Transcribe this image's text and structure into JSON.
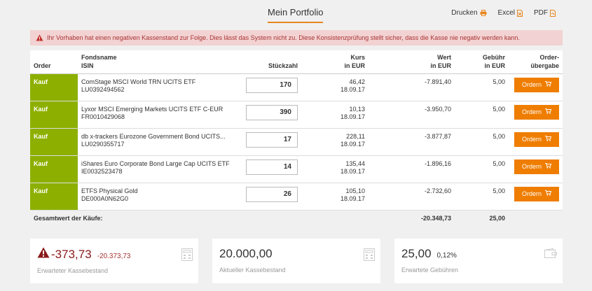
{
  "header": {
    "title": "Mein Portfolio",
    "print_label": "Drucken",
    "excel_label": "Excel",
    "pdf_label": "PDF"
  },
  "alert": {
    "text": "Ihr Vorhaben hat einen negativen Kassenstand zur Folge. Dies lässt das System nicht zu. Diese Konsistenzprüfung stellt sicher, dass die Kasse nie negativ werden kann."
  },
  "table": {
    "headers": {
      "order": "Order",
      "fund_name": "Fondsname",
      "isin": "ISIN",
      "qty": "Stückzahl",
      "price_1": "Kurs",
      "price_2": "in EUR",
      "value_1": "Wert",
      "value_2": "in EUR",
      "fee_1": "Gebühr",
      "fee_2": "in EUR",
      "submit_1": "Order-",
      "submit_2": "übergabe"
    },
    "rows": [
      {
        "order": "Kauf",
        "name": "ComStage MSCI World TRN UCITS ETF",
        "isin": "LU0392494562",
        "qty": "170",
        "price": "46,42",
        "date": "18.09.17",
        "value": "-7.891,40",
        "fee": "5,00",
        "button": "Ordern"
      },
      {
        "order": "Kauf",
        "name": "Lyxor MSCI Emerging Markets UCITS ETF C-EUR",
        "isin": "FR0010429068",
        "qty": "390",
        "price": "10,13",
        "date": "18.09.17",
        "value": "-3.950,70",
        "fee": "5,00",
        "button": "Ordern"
      },
      {
        "order": "Kauf",
        "name": "db x-trackers Eurozone Government Bond UCITS...",
        "isin": "LU0290355717",
        "qty": "17",
        "price": "228,11",
        "date": "18.09.17",
        "value": "-3.877,87",
        "fee": "5,00",
        "button": "Ordern"
      },
      {
        "order": "Kauf",
        "name": "iShares Euro Corporate Bond Large Cap UCITS ETF",
        "isin": "IE0032523478",
        "qty": "14",
        "price": "135,44",
        "date": "18.09.17",
        "value": "-1.896,16",
        "fee": "5,00",
        "button": "Ordern"
      },
      {
        "order": "Kauf",
        "name": "ETFS Physical Gold",
        "isin": "DE000A0N62G0",
        "qty": "26",
        "price": "105,10",
        "date": "18.09.17",
        "value": "-2.732,60",
        "fee": "5,00",
        "button": "Ordern"
      }
    ],
    "total": {
      "label": "Gesamtwert der Käufe:",
      "value": "-20.348,73",
      "fee": "25,00"
    }
  },
  "cards": {
    "cash": {
      "value": "-373,73",
      "delta": "-20.373,73",
      "label": "Erwarteter Kassebestand"
    },
    "current": {
      "value": "20.000,00",
      "label": "Aktueller Kassebestand"
    },
    "fees": {
      "value": "25,00",
      "percent": "0,12%",
      "label": "Erwartete Gebühren"
    }
  },
  "colors": {
    "accent": "#ef7d00",
    "buy_green": "#8db000",
    "alert_bg": "#f2d2d2",
    "negative": "#8b1a1a"
  },
  "icons": [
    "printer-icon",
    "excel-file-icon",
    "pdf-file-icon",
    "warning-icon",
    "cart-icon",
    "calculator-icon",
    "wallet-icon"
  ]
}
